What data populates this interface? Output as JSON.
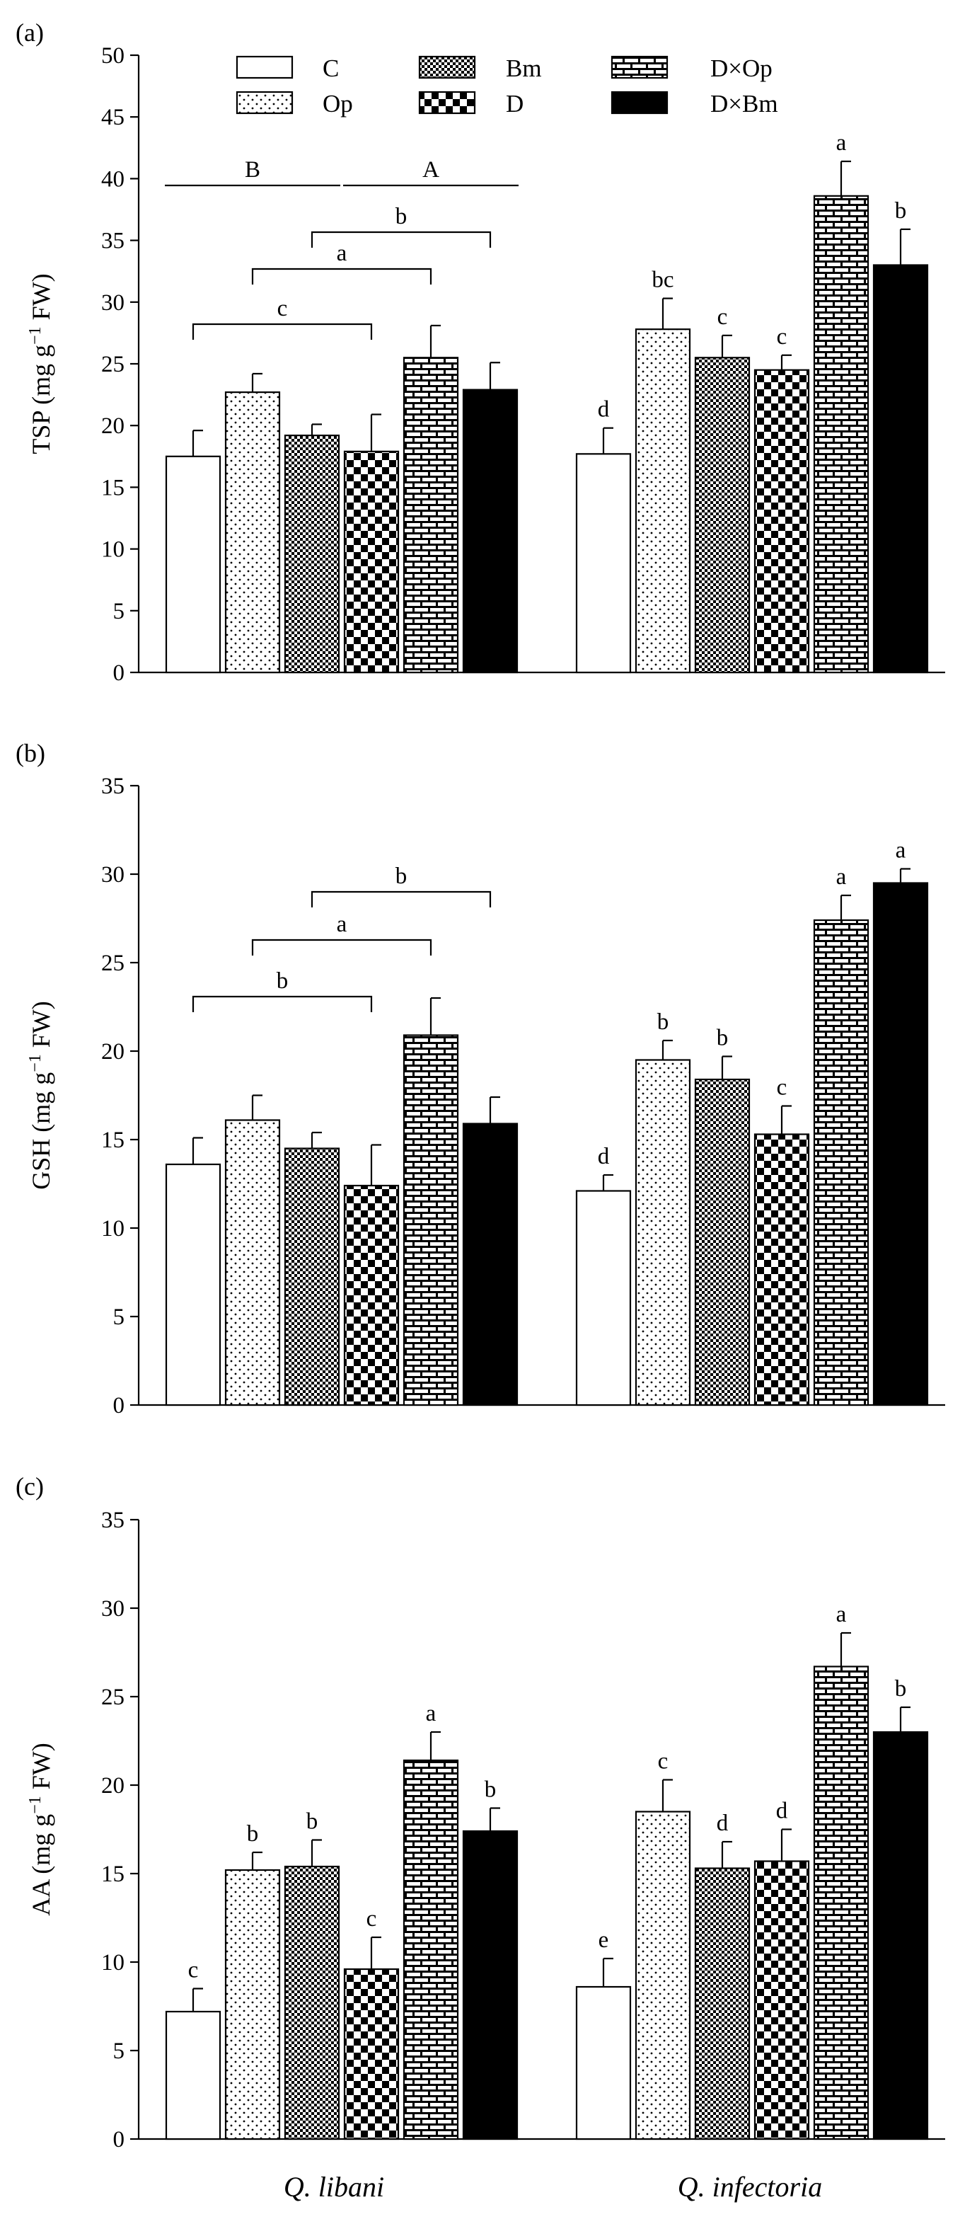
{
  "chart_data": [
    {
      "type": "bar",
      "panel_label": "(a)",
      "ylabel_main": "TSP (mg g",
      "ylabel_sup": "−1",
      "ylabel_tail": " FW)",
      "ylim": [
        0,
        50
      ],
      "yticks": [
        "0",
        "5",
        "10",
        "15",
        "20",
        "25",
        "30",
        "35",
        "40",
        "45",
        "50"
      ],
      "categories": [
        "Q. libani",
        "Q. infectoria"
      ],
      "series": [
        {
          "name": "C",
          "values": [
            17.5,
            17.7
          ],
          "errors": [
            2.1,
            2.1
          ],
          "letters": [
            "",
            "d"
          ]
        },
        {
          "name": "Op",
          "values": [
            22.7,
            27.8
          ],
          "errors": [
            1.5,
            2.5
          ],
          "letters": [
            "",
            "bc"
          ]
        },
        {
          "name": "Bm",
          "values": [
            19.2,
            25.5
          ],
          "errors": [
            0.9,
            1.8
          ],
          "letters": [
            "",
            "c"
          ]
        },
        {
          "name": "D",
          "values": [
            17.9,
            24.5
          ],
          "errors": [
            3.0,
            1.2
          ],
          "letters": [
            "",
            "c"
          ]
        },
        {
          "name": "D×Op",
          "values": [
            25.5,
            38.6
          ],
          "errors": [
            2.6,
            2.8
          ],
          "letters": [
            "",
            "a"
          ]
        },
        {
          "name": "D×Bm",
          "values": [
            22.9,
            33.0
          ],
          "errors": [
            2.2,
            2.9
          ],
          "letters": [
            "",
            "b"
          ]
        }
      ],
      "group_lines": [
        {
          "label": "B",
          "from": 0,
          "to": 2
        },
        {
          "label": "A",
          "from": 3,
          "to": 5
        }
      ],
      "brackets": [
        {
          "label": "b",
          "from": 2,
          "to": 5
        },
        {
          "label": "a",
          "from": 1,
          "to": 4
        },
        {
          "label": "c",
          "from": 0,
          "to": 3
        }
      ]
    },
    {
      "type": "bar",
      "panel_label": "(b)",
      "ylabel_main": "GSH (mg g",
      "ylabel_sup": "−1",
      "ylabel_tail": " FW)",
      "ylim": [
        0,
        35
      ],
      "yticks": [
        "0",
        "5",
        "10",
        "15",
        "20",
        "25",
        "30",
        "35"
      ],
      "categories": [
        "Q. libani",
        "Q. infectoria"
      ],
      "series": [
        {
          "name": "C",
          "values": [
            13.6,
            12.1
          ],
          "errors": [
            1.5,
            0.9
          ],
          "letters": [
            "",
            "d"
          ]
        },
        {
          "name": "Op",
          "values": [
            16.1,
            19.5
          ],
          "errors": [
            1.4,
            1.1
          ],
          "letters": [
            "",
            "b"
          ]
        },
        {
          "name": "Bm",
          "values": [
            14.5,
            18.4
          ],
          "errors": [
            0.9,
            1.3
          ],
          "letters": [
            "",
            "b"
          ]
        },
        {
          "name": "D",
          "values": [
            12.4,
            15.3
          ],
          "errors": [
            2.3,
            1.6
          ],
          "letters": [
            "",
            "c"
          ]
        },
        {
          "name": "D×Op",
          "values": [
            20.9,
            27.4
          ],
          "errors": [
            2.1,
            1.4
          ],
          "letters": [
            "",
            "a"
          ]
        },
        {
          "name": "D×Bm",
          "values": [
            15.9,
            29.5
          ],
          "errors": [
            1.5,
            0.8
          ],
          "letters": [
            "",
            "a"
          ]
        }
      ],
      "group_lines": [],
      "brackets": [
        {
          "label": "b",
          "from": 2,
          "to": 5
        },
        {
          "label": "a",
          "from": 1,
          "to": 4
        },
        {
          "label": "b",
          "from": 0,
          "to": 3
        }
      ]
    },
    {
      "type": "bar",
      "panel_label": "(c)",
      "ylabel_main": "AA (mg g",
      "ylabel_sup": "−1",
      "ylabel_tail": " FW)",
      "ylim": [
        0,
        35
      ],
      "yticks": [
        "0",
        "5",
        "10",
        "15",
        "20",
        "25",
        "30",
        "35"
      ],
      "categories": [
        "Q. libani",
        "Q. infectoria"
      ],
      "series": [
        {
          "name": "C",
          "values": [
            7.2,
            8.6
          ],
          "errors": [
            1.3,
            1.6
          ],
          "letters": [
            "c",
            "e"
          ]
        },
        {
          "name": "Op",
          "values": [
            15.2,
            18.5
          ],
          "errors": [
            1.0,
            1.8
          ],
          "letters": [
            "b",
            "c"
          ]
        },
        {
          "name": "Bm",
          "values": [
            15.4,
            15.3
          ],
          "errors": [
            1.5,
            1.5
          ],
          "letters": [
            "b",
            "d"
          ]
        },
        {
          "name": "D",
          "values": [
            9.6,
            15.7
          ],
          "errors": [
            1.8,
            1.8
          ],
          "letters": [
            "c",
            "d"
          ]
        },
        {
          "name": "D×Op",
          "values": [
            21.4,
            26.7
          ],
          "errors": [
            1.6,
            1.9
          ],
          "letters": [
            "a",
            "a"
          ]
        },
        {
          "name": "D×Bm",
          "values": [
            17.4,
            23.0
          ],
          "errors": [
            1.3,
            1.4
          ],
          "letters": [
            "b",
            "b"
          ]
        }
      ],
      "group_lines": [],
      "brackets": []
    }
  ],
  "legend": [
    {
      "name": "C",
      "pattern": "blank"
    },
    {
      "name": "Op",
      "pattern": "dots"
    },
    {
      "name": "Bm",
      "pattern": "fine-check"
    },
    {
      "name": "D",
      "pattern": "coarse-check"
    },
    {
      "name": "D×Op",
      "pattern": "brick"
    },
    {
      "name": "D×Bm",
      "pattern": "solid"
    }
  ],
  "category_labels": [
    "Q. libani",
    "Q. infectoria"
  ],
  "colors": {
    "ink": "#000000",
    "paper": "#ffffff"
  }
}
